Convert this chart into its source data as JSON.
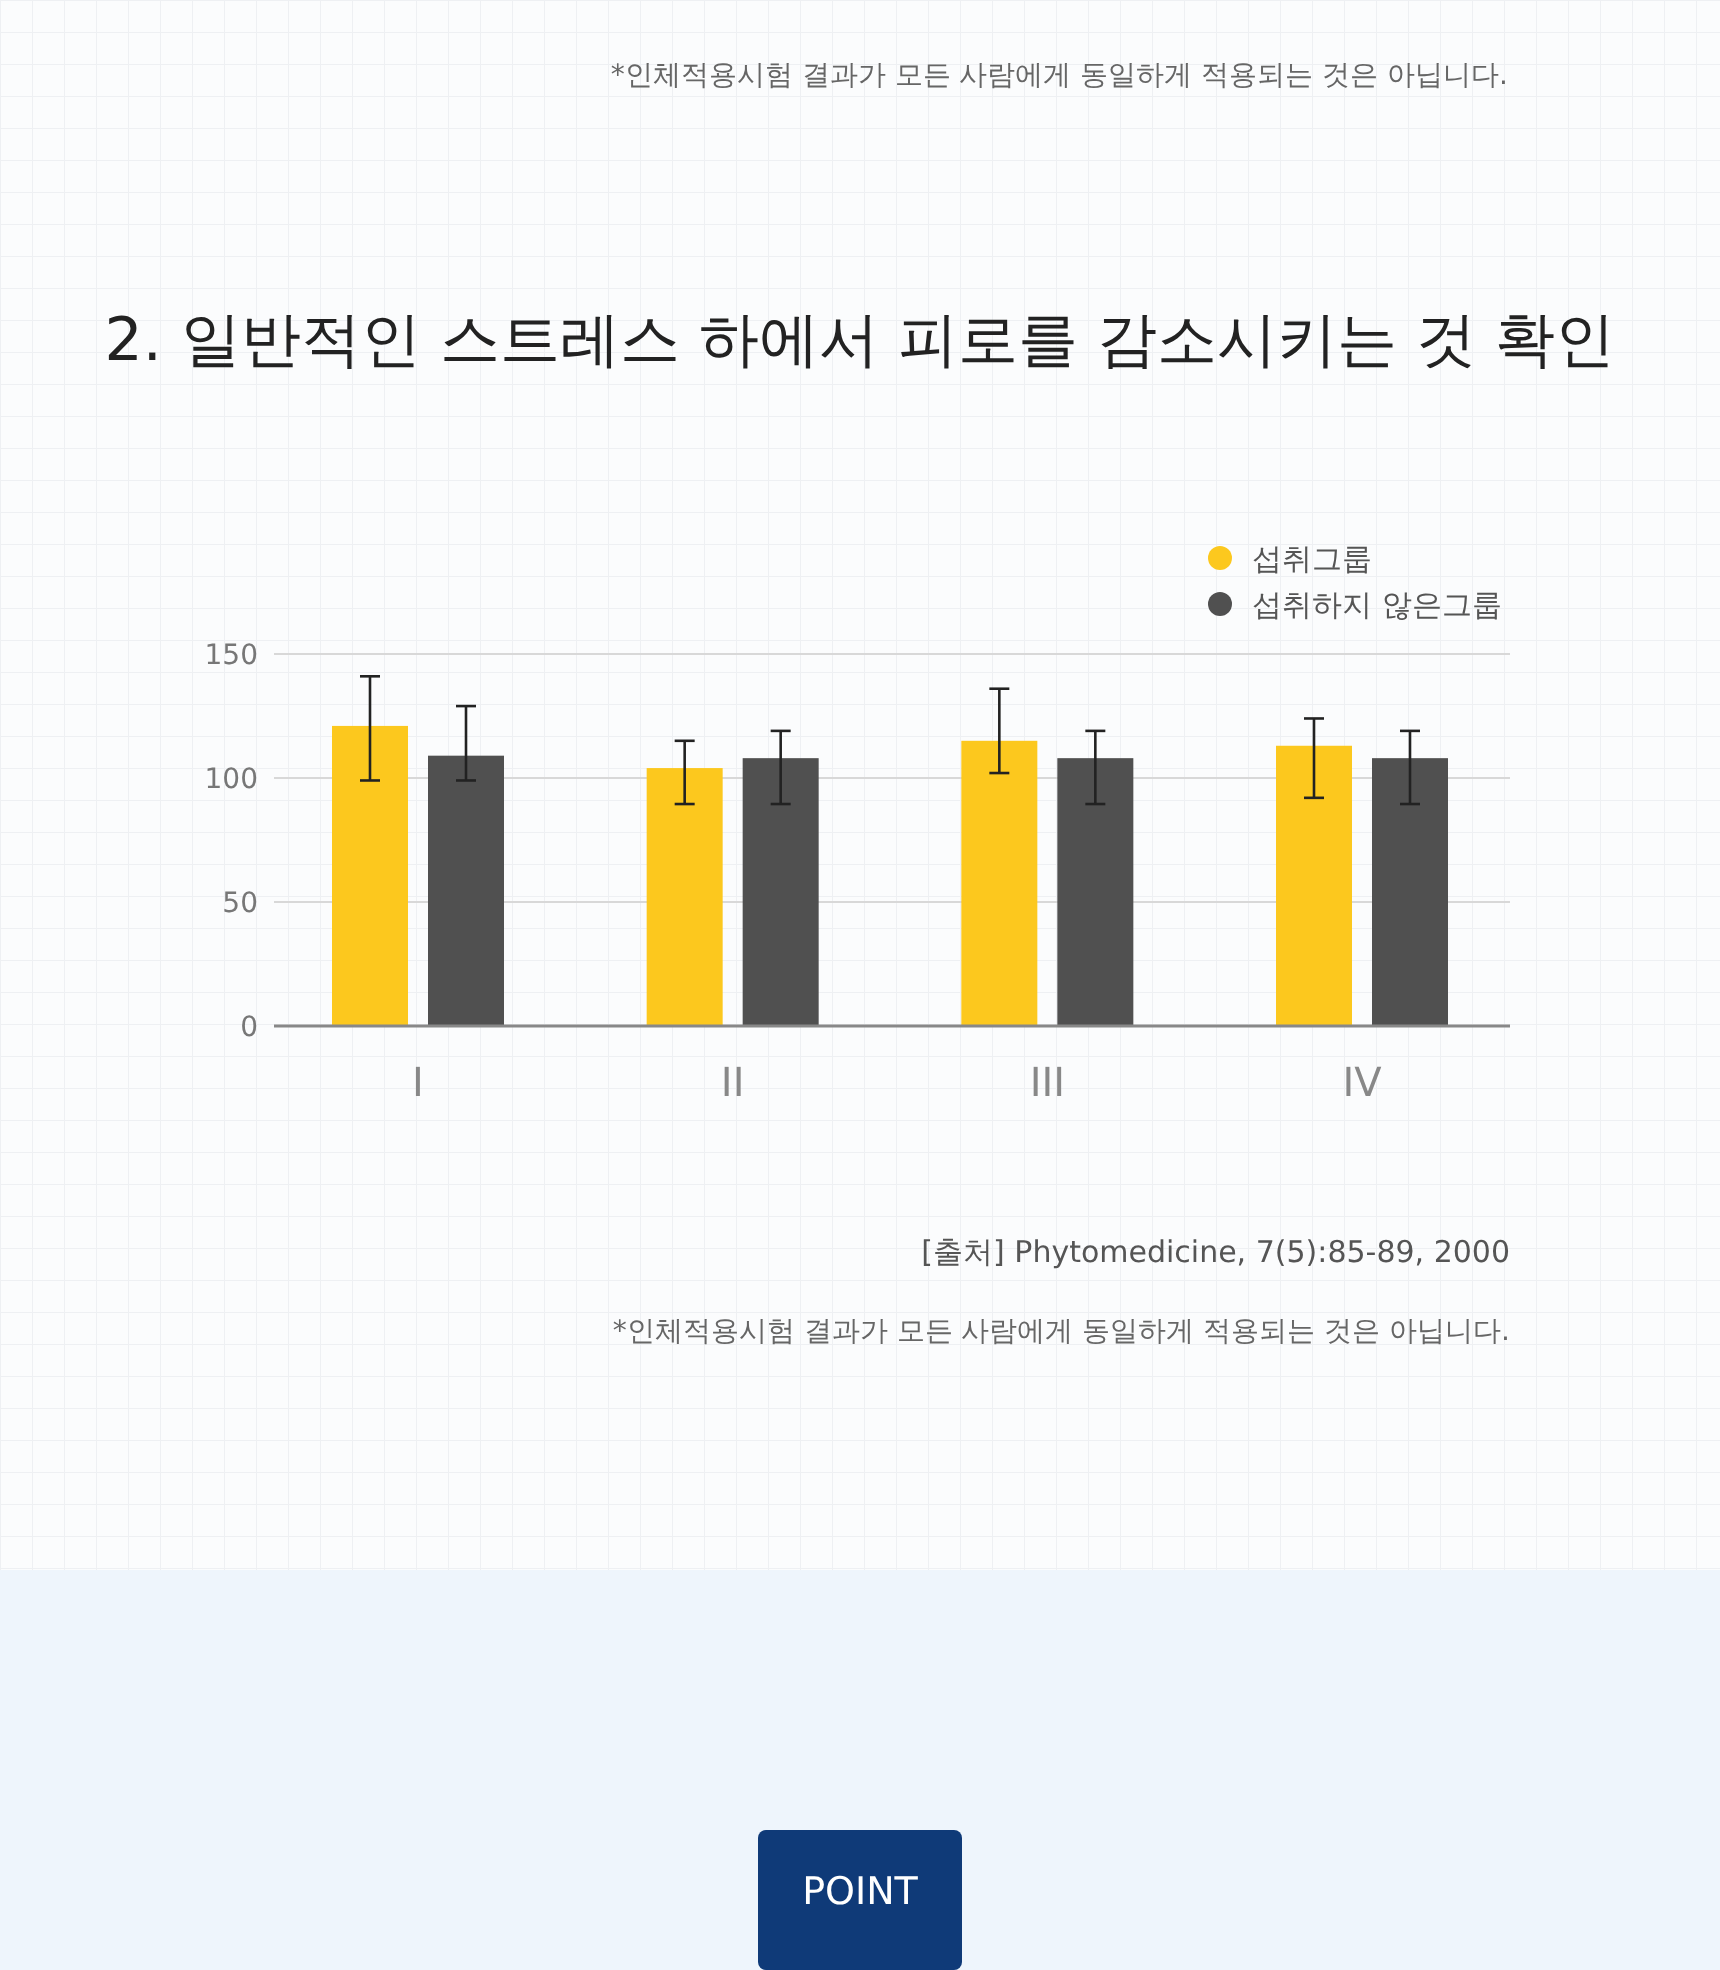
{
  "chart_data": {
    "type": "bar",
    "title": "2. 일반적인 스트레스 하에서 피로를 감소시키는 것 확인",
    "categories": [
      "I",
      "II",
      "III",
      "IV"
    ],
    "series": [
      {
        "name": "섭취그룹",
        "color": "#fcc81e",
        "values": [
          121,
          104,
          115,
          113
        ],
        "errors": [
          [
            99,
            141
          ],
          [
            89.5,
            115
          ],
          [
            102,
            136
          ],
          [
            92,
            124
          ]
        ]
      },
      {
        "name": "섭취하지 않은그룹",
        "color": "#505050",
        "values": [
          109,
          108,
          108,
          108
        ],
        "errors": [
          [
            99,
            129
          ],
          [
            89.5,
            119
          ],
          [
            89.5,
            119
          ],
          [
            89.5,
            119
          ]
        ]
      }
    ],
    "ylim": [
      0,
      150
    ],
    "yticks": [
      0,
      50,
      100,
      150
    ],
    "grid": "y",
    "legend": "top right",
    "annotations": [
      "*인체적용시험 결과가 모든 사람에게 동일하게 적용되는 것은 아닙니다.",
      "[출처]  Phytomedicine, 7(5):85-89, 2000",
      "*인체적용시험 결과가 모든 사람에게 동일하게 적용되는 것은 아닙니다.",
      "POINT"
    ]
  }
}
